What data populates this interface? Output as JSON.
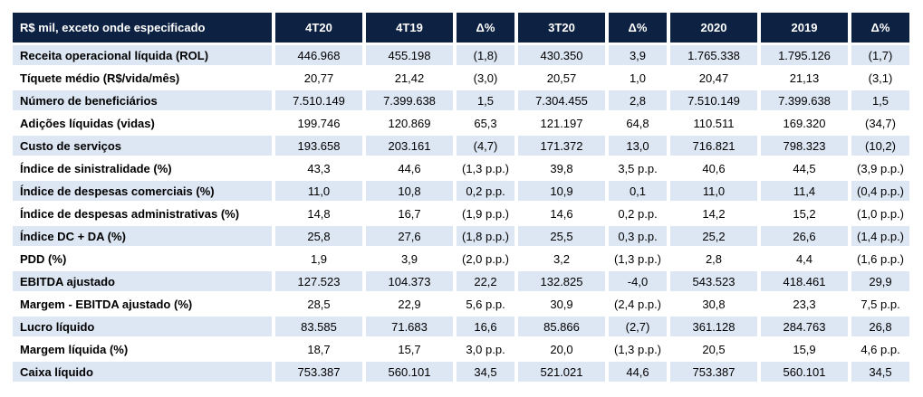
{
  "table": {
    "headers": [
      "R$ mil, exceto onde especificado",
      "4T20",
      "4T19",
      "Δ%",
      "3T20",
      "Δ%",
      "2020",
      "2019",
      "Δ%"
    ],
    "rows": [
      [
        "Receita operacional líquida  (ROL)",
        "446.968",
        "455.198",
        "(1,8)",
        "430.350",
        "3,9",
        "1.765.338",
        "1.795.126",
        "(1,7)"
      ],
      [
        "Tíquete médio (R$/vida/mês)",
        "20,77",
        "21,42",
        "(3,0)",
        "20,57",
        "1,0",
        "20,47",
        "21,13",
        "(3,1)"
      ],
      [
        "Número de beneficiários",
        "7.510.149",
        "7.399.638",
        "1,5",
        "7.304.455",
        "2,8",
        "7.510.149",
        "7.399.638",
        "1,5"
      ],
      [
        "Adições líquidas (vidas)",
        "199.746",
        "120.869",
        "65,3",
        "121.197",
        "64,8",
        "110.511",
        "169.320",
        "(34,7)"
      ],
      [
        "Custo de serviços",
        "193.658",
        "203.161",
        "(4,7)",
        "171.372",
        "13,0",
        "716.821",
        "798.323",
        "(10,2)"
      ],
      [
        "Índice de sinistralidade (%)",
        "43,3",
        "44,6",
        "(1,3 p.p.)",
        "39,8",
        "3,5 p.p.",
        "40,6",
        "44,5",
        "(3,9 p.p.)"
      ],
      [
        "Índice de despesas comerciais (%)",
        "11,0",
        "10,8",
        "0,2 p.p.",
        "10,9",
        "0,1",
        "11,0",
        "11,4",
        "(0,4 p.p.)"
      ],
      [
        "Índice de despesas administrativas (%)",
        "14,8",
        "16,7",
        "(1,9 p.p.)",
        "14,6",
        "0,2 p.p.",
        "14,2",
        "15,2",
        "(1,0 p.p.)"
      ],
      [
        "Índice DC + DA (%)",
        "25,8",
        "27,6",
        "(1,8 p.p.)",
        "25,5",
        "0,3 p.p.",
        "25,2",
        "26,6",
        "(1,4 p.p.)"
      ],
      [
        "PDD  (%)",
        "1,9",
        "3,9",
        "(2,0 p.p.)",
        "3,2",
        "(1,3 p.p.)",
        "2,8",
        "4,4",
        "(1,6 p.p.)"
      ],
      [
        "EBITDA ajustado",
        "127.523",
        "104.373",
        "22,2",
        "132.825",
        "-4,0",
        "543.523",
        "418.461",
        "29,9"
      ],
      [
        "Margem - EBITDA ajustado (%)",
        "28,5",
        "22,9",
        "5,6 p.p.",
        "30,9",
        "(2,4 p.p.)",
        "30,8",
        "23,3",
        "7,5 p.p."
      ],
      [
        "Lucro líquido",
        "83.585",
        "71.683",
        "16,6",
        "85.866",
        "(2,7)",
        "361.128",
        "284.763",
        "26,8"
      ],
      [
        "Margem líquida (%)",
        "18,7",
        "15,7",
        "3,0 p.p.",
        "20,0",
        "(1,3 p.p.)",
        "20,5",
        "15,9",
        "4,6 p.p."
      ],
      [
        "Caixa líquido",
        "753.387",
        "560.101",
        "34,5",
        "521.021",
        "44,6",
        "753.387",
        "560.101",
        "34,5"
      ]
    ]
  }
}
